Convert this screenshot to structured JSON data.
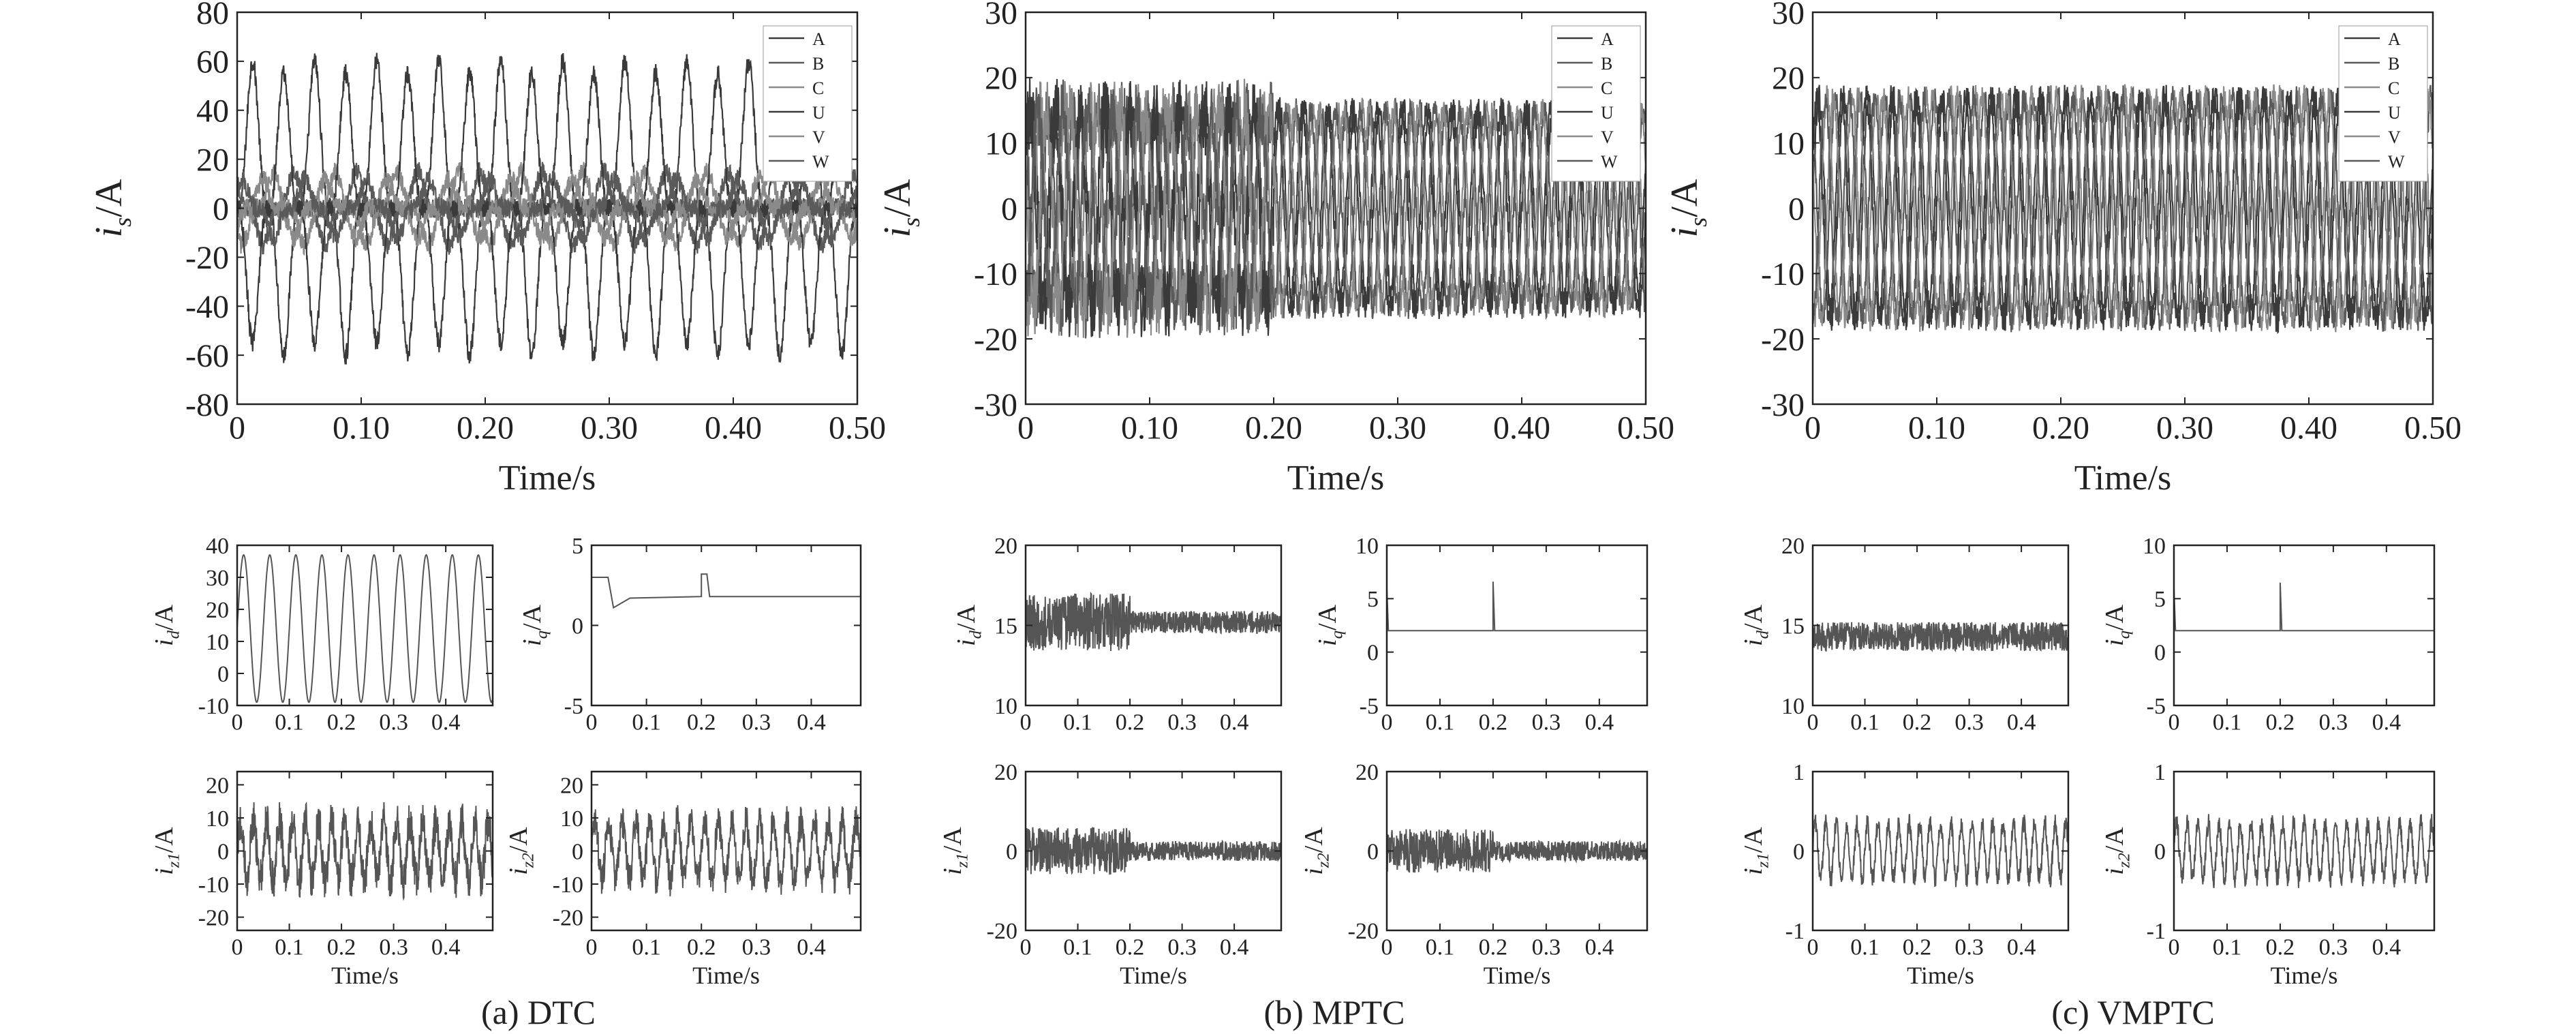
{
  "figure": {
    "captions": [
      "(a) DTC",
      "(b) MPTC",
      "(c) VMPTC"
    ]
  },
  "colors": {
    "background": "#ffffff",
    "axis": "#222222",
    "phase_dark": "#3a3a3a",
    "phase_mid": "#5a5a5a",
    "phase_light": "#8a8a8a",
    "trace": "#555555"
  },
  "chart_data": [
    {
      "id": "a-main",
      "type": "line",
      "panel": "(a) DTC",
      "xlabel": "Time/s",
      "ylabel": "i_s/A",
      "xlim": [
        0,
        0.5
      ],
      "ylim": [
        -80,
        80
      ],
      "xticks": [
        0,
        0.1,
        0.2,
        0.3,
        0.4,
        0.5
      ],
      "xticklabels": [
        "0",
        "0.10",
        "0.20",
        "0.30",
        "0.40",
        "0.50"
      ],
      "yticks": [
        -80,
        -60,
        -40,
        -20,
        0,
        20,
        40,
        60,
        80
      ],
      "legend": [
        "A",
        "B",
        "C",
        "U",
        "V",
        "W"
      ],
      "legend_position": "top-right",
      "series": [
        {
          "name": "A",
          "amplitude": 60,
          "period": 0.05,
          "phase_deg": 0,
          "noise": 4
        },
        {
          "name": "B",
          "amplitude": 15,
          "period": 0.05,
          "phase_deg": 120,
          "noise": 4
        },
        {
          "name": "C",
          "amplitude": 15,
          "period": 0.05,
          "phase_deg": 240,
          "noise": 4
        },
        {
          "name": "U",
          "amplitude": 55,
          "period": 0.05,
          "phase_deg": 180,
          "noise": 4
        },
        {
          "name": "V",
          "amplitude": 12,
          "period": 0.05,
          "phase_deg": 300,
          "noise": 4
        },
        {
          "name": "W",
          "amplitude": 12,
          "period": 0.05,
          "phase_deg": 60,
          "noise": 4
        }
      ]
    },
    {
      "id": "b-main",
      "type": "line",
      "panel": "(b) MPTC",
      "xlabel": "Time/s",
      "ylabel": "i_s/A",
      "xlim": [
        0,
        0.5
      ],
      "ylim": [
        -30,
        30
      ],
      "xticks": [
        0,
        0.1,
        0.2,
        0.3,
        0.4,
        0.5
      ],
      "xticklabels": [
        "0",
        "0.10",
        "0.20",
        "0.30",
        "0.40",
        "0.50"
      ],
      "yticks": [
        -30,
        -20,
        -10,
        0,
        10,
        20,
        30
      ],
      "legend": [
        "A",
        "B",
        "C",
        "U",
        "V",
        "W"
      ],
      "legend_position": "top-right",
      "series": [
        {
          "name": "A",
          "amplitude": 15,
          "period": 0.02,
          "phase_deg": 0,
          "noise": 5,
          "noise_after_0.2": 2
        },
        {
          "name": "B",
          "amplitude": 15,
          "period": 0.02,
          "phase_deg": 120,
          "noise": 5,
          "noise_after_0.2": 2
        },
        {
          "name": "C",
          "amplitude": 15,
          "period": 0.02,
          "phase_deg": 240,
          "noise": 5,
          "noise_after_0.2": 2
        },
        {
          "name": "U",
          "amplitude": 15,
          "period": 0.02,
          "phase_deg": 30,
          "noise": 5,
          "noise_after_0.2": 2
        },
        {
          "name": "V",
          "amplitude": 15,
          "period": 0.02,
          "phase_deg": 150,
          "noise": 5,
          "noise_after_0.2": 2
        },
        {
          "name": "W",
          "amplitude": 15,
          "period": 0.02,
          "phase_deg": 270,
          "noise": 5,
          "noise_after_0.2": 2
        }
      ]
    },
    {
      "id": "c-main",
      "type": "line",
      "panel": "(c) VMPTC",
      "xlabel": "Time/s",
      "ylabel": "i_s/A",
      "xlim": [
        0,
        0.5
      ],
      "ylim": [
        -30,
        30
      ],
      "xticks": [
        0,
        0.1,
        0.2,
        0.3,
        0.4,
        0.5
      ],
      "xticklabels": [
        "0",
        "0.10",
        "0.20",
        "0.30",
        "0.40",
        "0.50"
      ],
      "yticks": [
        -30,
        -20,
        -10,
        0,
        10,
        20,
        30
      ],
      "legend": [
        "A",
        "B",
        "C",
        "U",
        "V",
        "W"
      ],
      "legend_position": "top-right",
      "series": [
        {
          "name": "A",
          "amplitude": 17,
          "period": 0.02,
          "phase_deg": 0,
          "noise": 2
        },
        {
          "name": "B",
          "amplitude": 17,
          "period": 0.02,
          "phase_deg": 120,
          "noise": 2
        },
        {
          "name": "C",
          "amplitude": 17,
          "period": 0.02,
          "phase_deg": 240,
          "noise": 2
        },
        {
          "name": "U",
          "amplitude": 17,
          "period": 0.02,
          "phase_deg": 30,
          "noise": 2
        },
        {
          "name": "V",
          "amplitude": 17,
          "period": 0.02,
          "phase_deg": 150,
          "noise": 2
        },
        {
          "name": "W",
          "amplitude": 17,
          "period": 0.02,
          "phase_deg": 270,
          "noise": 2
        }
      ]
    },
    {
      "id": "a-id",
      "type": "line",
      "xlabel": "",
      "ylabel": "i_d/A",
      "xlim": [
        0,
        0.49
      ],
      "ylim": [
        -10,
        40
      ],
      "xticks": [
        0,
        0.1,
        0.2,
        0.3,
        0.4
      ],
      "xticklabels": [
        "0",
        "0.1",
        "0.2",
        "0.3",
        "0.4"
      ],
      "yticks": [
        -10,
        0,
        10,
        20,
        30,
        40
      ],
      "series": [
        {
          "kind": "sine",
          "offset": 14,
          "amplitude": 23,
          "period": 0.05,
          "noise": 0
        }
      ]
    },
    {
      "id": "a-iq",
      "type": "line",
      "xlabel": "",
      "ylabel": "i_q/A",
      "xlim": [
        0,
        0.49
      ],
      "ylim": [
        -5,
        5
      ],
      "xticks": [
        0,
        0.1,
        0.2,
        0.3,
        0.4
      ],
      "xticklabels": [
        "0",
        "0.1",
        "0.2",
        "0.3",
        "0.4"
      ],
      "yticks": [
        -5,
        0,
        5
      ],
      "series": [
        {
          "kind": "steps",
          "points": [
            [
              0,
              3
            ],
            [
              0.03,
              3
            ],
            [
              0.04,
              1.1
            ],
            [
              0.07,
              1.7
            ],
            [
              0.2,
              1.8
            ],
            [
              0.2,
              3.2
            ],
            [
              0.21,
              3.2
            ],
            [
              0.215,
              1.8
            ],
            [
              0.49,
              1.8
            ]
          ]
        }
      ]
    },
    {
      "id": "b-id",
      "type": "line",
      "xlabel": "",
      "ylabel": "i_d/A",
      "xlim": [
        0,
        0.49
      ],
      "ylim": [
        10,
        20
      ],
      "xticks": [
        0,
        0.1,
        0.2,
        0.3,
        0.4
      ],
      "xticklabels": [
        "0",
        "0.1",
        "0.2",
        "0.3",
        "0.4"
      ],
      "yticks": [
        10,
        15,
        20
      ],
      "series": [
        {
          "kind": "noise",
          "offset": 15.2,
          "noise": 1.8,
          "noise_after_0.2": 0.7
        }
      ]
    },
    {
      "id": "b-iq",
      "type": "line",
      "xlabel": "",
      "ylabel": "i_q/A",
      "xlim": [
        0,
        0.49
      ],
      "ylim": [
        -5,
        10
      ],
      "xticks": [
        0,
        0.1,
        0.2,
        0.3,
        0.4
      ],
      "xticklabels": [
        "0",
        "0.1",
        "0.2",
        "0.3",
        "0.4"
      ],
      "yticks": [
        -5,
        0,
        5,
        10
      ],
      "series": [
        {
          "kind": "steps",
          "points": [
            [
              0,
              6
            ],
            [
              0.003,
              2
            ],
            [
              0.2,
              2
            ],
            [
              0.2,
              6.6
            ],
            [
              0.203,
              2
            ],
            [
              0.49,
              2
            ]
          ]
        }
      ]
    },
    {
      "id": "c-id",
      "type": "line",
      "xlabel": "",
      "ylabel": "i_d/A",
      "xlim": [
        0,
        0.49
      ],
      "ylim": [
        10,
        20
      ],
      "xticks": [
        0,
        0.1,
        0.2,
        0.3,
        0.4
      ],
      "xticklabels": [
        "0",
        "0.1",
        "0.2",
        "0.3",
        "0.4"
      ],
      "yticks": [
        10,
        15,
        20
      ],
      "series": [
        {
          "kind": "noise",
          "offset": 14.3,
          "noise": 0.9
        }
      ]
    },
    {
      "id": "c-iq",
      "type": "line",
      "xlabel": "",
      "ylabel": "i_q/A",
      "xlim": [
        0,
        0.49
      ],
      "ylim": [
        -5,
        10
      ],
      "xticks": [
        0,
        0.1,
        0.2,
        0.3,
        0.4
      ],
      "xticklabels": [
        "0",
        "0.1",
        "0.2",
        "0.3",
        "0.4"
      ],
      "yticks": [
        -5,
        0,
        5,
        10
      ],
      "series": [
        {
          "kind": "steps",
          "points": [
            [
              0,
              6
            ],
            [
              0.003,
              2
            ],
            [
              0.2,
              2
            ],
            [
              0.2,
              6.5
            ],
            [
              0.203,
              2
            ],
            [
              0.49,
              2
            ]
          ]
        }
      ]
    },
    {
      "id": "a-iz1",
      "type": "line",
      "xlabel": "Time/s",
      "ylabel": "i_z1/A",
      "xlim": [
        0,
        0.49
      ],
      "ylim": [
        -24,
        24
      ],
      "xticks": [
        0,
        0.1,
        0.2,
        0.3,
        0.4
      ],
      "xticklabels": [
        "0",
        "0.1",
        "0.2",
        "0.3",
        "0.4"
      ],
      "yticks": [
        -20,
        -10,
        0,
        10,
        20
      ],
      "series": [
        {
          "kind": "sine",
          "offset": 0,
          "amplitude": 9,
          "period": 0.025,
          "noise": 6
        }
      ]
    },
    {
      "id": "a-iz2",
      "type": "line",
      "xlabel": "Time/s",
      "ylabel": "i_z2/A",
      "xlim": [
        0,
        0.49
      ],
      "ylim": [
        -24,
        24
      ],
      "xticks": [
        0,
        0.1,
        0.2,
        0.3,
        0.4
      ],
      "xticklabels": [
        "0",
        "0.1",
        "0.2",
        "0.3",
        "0.4"
      ],
      "yticks": [
        -20,
        -10,
        0,
        10,
        20
      ],
      "series": [
        {
          "kind": "sine",
          "offset": 0,
          "amplitude": 9,
          "period": 0.025,
          "noise": 5
        }
      ]
    },
    {
      "id": "b-iz1",
      "type": "line",
      "xlabel": "Time/s",
      "ylabel": "i_z1/A",
      "xlim": [
        0,
        0.49
      ],
      "ylim": [
        -20,
        20
      ],
      "xticks": [
        0,
        0.1,
        0.2,
        0.3,
        0.4
      ],
      "xticklabels": [
        "0",
        "0.1",
        "0.2",
        "0.3",
        "0.4"
      ],
      "yticks": [
        -20,
        0,
        20
      ],
      "series": [
        {
          "kind": "noise",
          "offset": 0,
          "noise": 6,
          "noise_after_0.2": 2.5
        }
      ]
    },
    {
      "id": "b-iz2",
      "type": "line",
      "xlabel": "Time/s",
      "ylabel": "i_z2/A",
      "xlim": [
        0,
        0.49
      ],
      "ylim": [
        -20,
        20
      ],
      "xticks": [
        0,
        0.1,
        0.2,
        0.3,
        0.4
      ],
      "xticklabels": [
        "0",
        "0.1",
        "0.2",
        "0.3",
        "0.4"
      ],
      "yticks": [
        -20,
        0,
        20
      ],
      "series": [
        {
          "kind": "noise",
          "offset": 0,
          "noise": 5.5,
          "noise_after_0.2": 2.5
        }
      ]
    },
    {
      "id": "c-iz1",
      "type": "line",
      "xlabel": "Time/s",
      "ylabel": "i_z1/A",
      "xlim": [
        0,
        0.49
      ],
      "ylim": [
        -1,
        1
      ],
      "xticks": [
        0,
        0.1,
        0.2,
        0.3,
        0.4
      ],
      "xticklabels": [
        "0",
        "0.1",
        "0.2",
        "0.3",
        "0.4"
      ],
      "yticks": [
        -1,
        0,
        1
      ],
      "series": [
        {
          "kind": "sine",
          "offset": 0,
          "amplitude": 0.35,
          "period": 0.02,
          "noise": 0.12
        }
      ]
    },
    {
      "id": "c-iz2",
      "type": "line",
      "xlabel": "Time/s",
      "ylabel": "i_z2/A",
      "xlim": [
        0,
        0.49
      ],
      "ylim": [
        -1,
        1
      ],
      "xticks": [
        0,
        0.1,
        0.2,
        0.3,
        0.4
      ],
      "xticklabels": [
        "0",
        "0.1",
        "0.2",
        "0.3",
        "0.4"
      ],
      "yticks": [
        -1,
        0,
        1
      ],
      "series": [
        {
          "kind": "sine",
          "offset": 0,
          "amplitude": 0.35,
          "period": 0.02,
          "noise": 0.12
        }
      ]
    }
  ]
}
